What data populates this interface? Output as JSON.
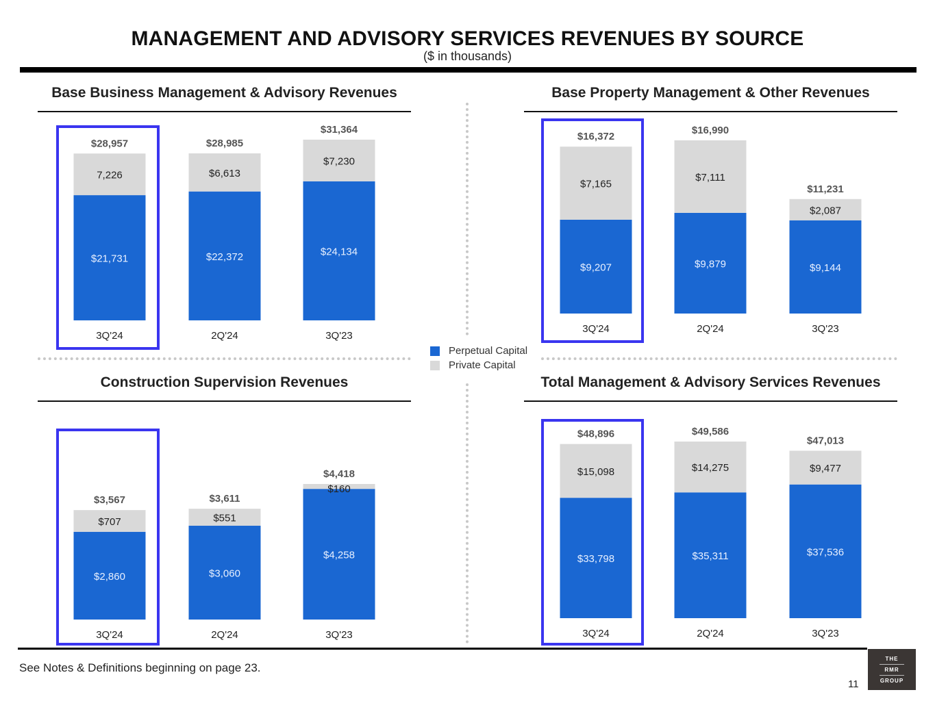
{
  "header": {
    "title": "MANAGEMENT AND ADVISORY SERVICES REVENUES BY SOURCE",
    "subtitle": "($ in thousands)"
  },
  "legend": {
    "items": [
      {
        "label": "Perpetual Capital",
        "color": "#1a67d2"
      },
      {
        "label": "Private Capital",
        "color": "#d9d9d9"
      }
    ]
  },
  "colors": {
    "perpetual": "#1a67d2",
    "private": "#d9d9d9",
    "highlight": "#3a35f0",
    "total_label": "#555555"
  },
  "footer": {
    "note": "See Notes & Definitions beginning on page 23.",
    "page_number": "11",
    "logo_lines": [
      "THE",
      "RMR",
      "GROUP"
    ]
  },
  "chart_data": [
    {
      "type": "bar",
      "stacked": true,
      "title": "Base Business Management & Advisory Revenues",
      "categories": [
        "3Q'24",
        "2Q'24",
        "3Q'23"
      ],
      "highlighted_category": "3Q'24",
      "series": [
        {
          "name": "Perpetual Capital",
          "values": [
            21731,
            22372,
            24134
          ],
          "labels": [
            "$21,731",
            "$22,372",
            "$24,134"
          ]
        },
        {
          "name": "Private Capital",
          "values": [
            7226,
            6613,
            7230
          ],
          "labels": [
            "7,226",
            "$6,613",
            "$7,230"
          ]
        }
      ],
      "totals": [
        28957,
        28985,
        31364
      ],
      "total_labels": [
        "$28,957",
        "$28,985",
        "$31,364"
      ]
    },
    {
      "type": "bar",
      "stacked": true,
      "title": "Base Property Management & Other Revenues",
      "categories": [
        "3Q'24",
        "2Q'24",
        "3Q'23"
      ],
      "highlighted_category": "3Q'24",
      "series": [
        {
          "name": "Perpetual Capital",
          "values": [
            9207,
            9879,
            9144
          ],
          "labels": [
            "$9,207",
            "$9,879",
            "$9,144"
          ]
        },
        {
          "name": "Private Capital",
          "values": [
            7165,
            7111,
            2087
          ],
          "labels": [
            "$7,165",
            "$7,111",
            "$2,087"
          ]
        }
      ],
      "totals": [
        16372,
        16990,
        11231
      ],
      "total_labels": [
        "$16,372",
        "$16,990",
        "$11,231"
      ]
    },
    {
      "type": "bar",
      "stacked": true,
      "title": "Construction Supervision Revenues",
      "categories": [
        "3Q'24",
        "2Q'24",
        "3Q'23"
      ],
      "highlighted_category": "3Q'24",
      "series": [
        {
          "name": "Perpetual Capital",
          "values": [
            2860,
            3060,
            4258
          ],
          "labels": [
            "$2,860",
            "$3,060",
            "$4,258"
          ]
        },
        {
          "name": "Private Capital",
          "values": [
            707,
            551,
            160
          ],
          "labels": [
            "$707",
            "$551",
            "$160"
          ]
        }
      ],
      "totals": [
        3567,
        3611,
        4418
      ],
      "total_labels": [
        "$3,567",
        "$3,611",
        "$4,418"
      ]
    },
    {
      "type": "bar",
      "stacked": true,
      "title": "Total Management & Advisory Services Revenues",
      "categories": [
        "3Q'24",
        "2Q'24",
        "3Q'23"
      ],
      "highlighted_category": "3Q'24",
      "series": [
        {
          "name": "Perpetual Capital",
          "values": [
            33798,
            35311,
            37536
          ],
          "labels": [
            "$33,798",
            "$35,311",
            "$37,536"
          ]
        },
        {
          "name": "Private Capital",
          "values": [
            15098,
            14275,
            9477
          ],
          "labels": [
            "$15,098",
            "$14,275",
            "$9,477"
          ]
        }
      ],
      "totals": [
        48896,
        49586,
        47013
      ],
      "total_labels": [
        "$48,896",
        "$49,586",
        "$47,013"
      ]
    }
  ]
}
